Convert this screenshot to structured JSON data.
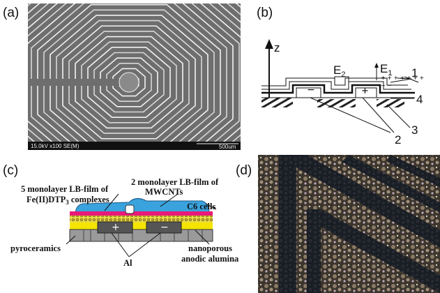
{
  "panels": {
    "a": {
      "label": "(a)",
      "scale_info": "15.0kV x100 SE(M)",
      "scale_bar": "500um"
    },
    "b": {
      "label": "(b)",
      "axis": "z",
      "fields": [
        {
          "base": "E",
          "sub": "2"
        },
        {
          "base": "E",
          "sub": "1"
        }
      ],
      "numbers": [
        "1",
        "4",
        "3",
        "2"
      ]
    },
    "c": {
      "label": "(c)",
      "mwcnt": [
        "2 monolayer LB-film of",
        "MWCNTs"
      ],
      "fe_line1": "5 monolayer LB-film of",
      "fe_line2": {
        "base": "Fe(II)DTP",
        "sub": "3",
        "rest": " complexes"
      },
      "cells": "C6 cells",
      "substrate": "pyroceramics",
      "electrodes": "Al",
      "alumina": [
        "nanoporous",
        "anodic alumina"
      ]
    },
    "d": {
      "label": "(d)"
    }
  }
}
